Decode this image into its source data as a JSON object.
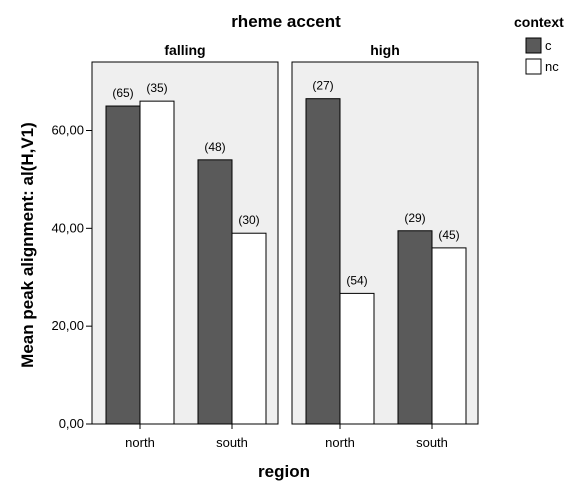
{
  "chart_data": {
    "type": "bar",
    "title": "rheme accent",
    "xlabel": "region",
    "ylabel": "Mean peak alignment: al(H,V1)",
    "ylim": [
      0,
      74
    ],
    "yticks": [
      "0,00",
      "20,00",
      "40,00",
      "60,00"
    ],
    "categories": [
      "north",
      "south"
    ],
    "legend": {
      "title": "context",
      "placement": "top-right",
      "entries": [
        {
          "name": "c",
          "color": "#5a5a5a"
        },
        {
          "name": "nc",
          "color": "#ffffff"
        }
      ]
    },
    "panels": [
      {
        "name": "falling",
        "series": [
          {
            "name": "c",
            "values": [
              65.0,
              54.0
            ],
            "labels": [
              "(65)",
              "(48)"
            ]
          },
          {
            "name": "nc",
            "values": [
              66.0,
              39.0
            ],
            "labels": [
              "(35)",
              "(30)"
            ]
          }
        ]
      },
      {
        "name": "high",
        "series": [
          {
            "name": "c",
            "values": [
              66.5,
              39.5
            ],
            "labels": [
              "(27)",
              "(29)"
            ]
          },
          {
            "name": "nc",
            "values": [
              26.7,
              36.0
            ],
            "labels": [
              "(54)",
              "(45)"
            ]
          }
        ]
      }
    ],
    "grid": false,
    "panel_background": "#efefef"
  }
}
